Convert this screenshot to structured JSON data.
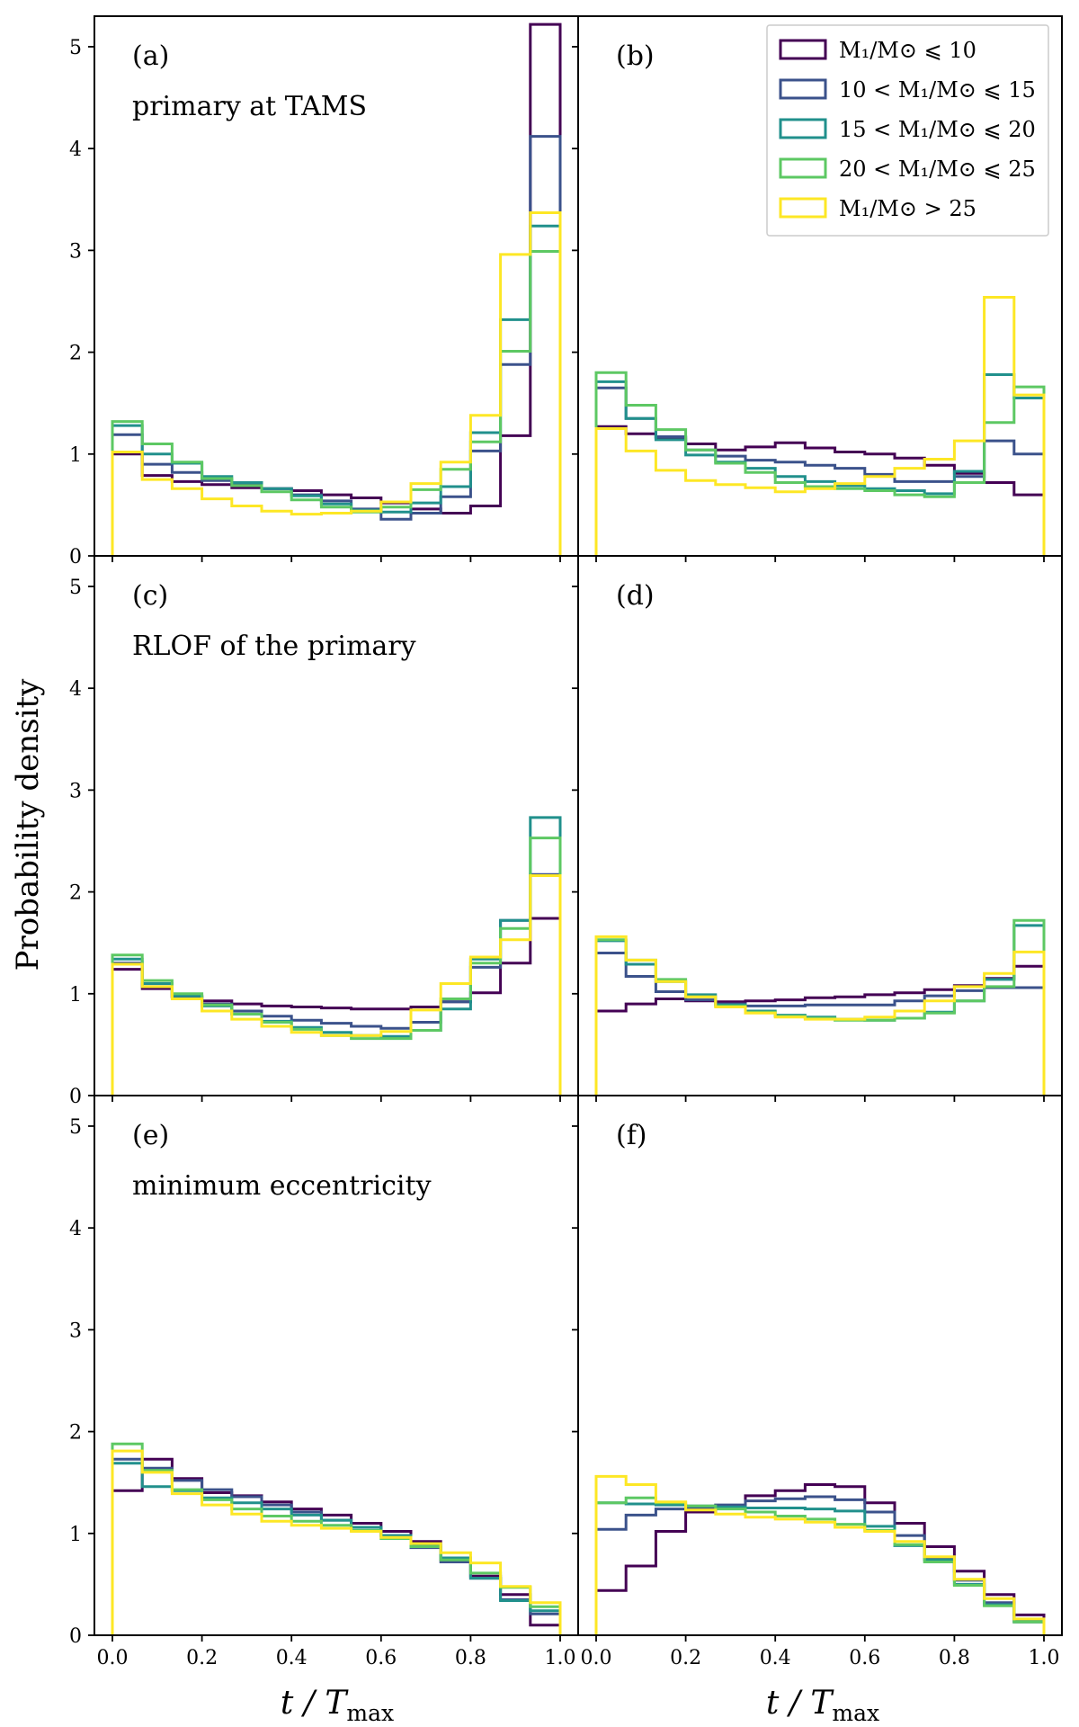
{
  "figure": {
    "ylabel": "Probability density",
    "xlabel_main": "t / T",
    "xlabel_sub": "max"
  },
  "legend": {
    "placement": "top-right",
    "entries": [
      {
        "label": "M₁/M⊙ ⩽ 10",
        "color": "#440154"
      },
      {
        "label": "10 < M₁/M⊙ ⩽ 15",
        "color": "#3b528b"
      },
      {
        "label": "15 < M₁/M⊙ ⩽ 20",
        "color": "#21908c"
      },
      {
        "label": "20 < M₁/M⊙ ⩽ 25",
        "color": "#5dc863"
      },
      {
        "label": "M₁/M⊙ > 25",
        "color": "#fde725"
      }
    ]
  },
  "chart_data": [
    {
      "type": "histogram",
      "panel": "(a)",
      "annotation": "primary at TAMS",
      "xlim": [
        0,
        1
      ],
      "ylim": [
        0,
        5.3
      ],
      "xticks": [
        "0.0",
        "0.2",
        "0.4",
        "0.6",
        "0.8",
        "1.0"
      ],
      "yticks": [
        "0",
        "1",
        "2",
        "3",
        "4",
        "5"
      ],
      "bin_width": 0.0667,
      "series": [
        {
          "name": "M1 <= 10",
          "color": "#440154",
          "values": [
            1.0,
            0.79,
            0.73,
            0.7,
            0.67,
            0.66,
            0.64,
            0.6,
            0.57,
            0.52,
            0.46,
            0.42,
            0.49,
            1.18,
            5.22
          ]
        },
        {
          "name": "10 < M1 <= 15",
          "color": "#3b528b",
          "values": [
            1.19,
            0.9,
            0.82,
            0.74,
            0.7,
            0.66,
            0.6,
            0.54,
            0.46,
            0.36,
            0.42,
            0.58,
            1.03,
            1.88,
            4.12
          ]
        },
        {
          "name": "15 < M1 <= 20",
          "color": "#21908c",
          "values": [
            1.28,
            1.0,
            0.91,
            0.78,
            0.72,
            0.66,
            0.59,
            0.51,
            0.45,
            0.43,
            0.52,
            0.68,
            1.21,
            2.32,
            3.24
          ]
        },
        {
          "name": "20 < M1 <= 25",
          "color": "#5dc863",
          "values": [
            1.32,
            1.1,
            0.92,
            0.76,
            0.69,
            0.63,
            0.55,
            0.48,
            0.43,
            0.48,
            0.65,
            0.85,
            1.12,
            2.01,
            2.99
          ]
        },
        {
          "name": "M1 > 25",
          "color": "#fde725",
          "values": [
            1.02,
            0.75,
            0.66,
            0.56,
            0.49,
            0.44,
            0.41,
            0.42,
            0.44,
            0.53,
            0.71,
            0.92,
            1.38,
            2.96,
            3.37
          ]
        }
      ]
    },
    {
      "type": "histogram",
      "panel": "(b)",
      "annotation": "",
      "xlim": [
        0,
        1
      ],
      "ylim": [
        0,
        5.3
      ],
      "xticks": [
        "0.0",
        "0.2",
        "0.4",
        "0.6",
        "0.8",
        "1.0"
      ],
      "yticks": [
        "0",
        "1",
        "2",
        "3",
        "4",
        "5"
      ],
      "bin_width": 0.0667,
      "series": [
        {
          "name": "M1 <= 10",
          "color": "#440154",
          "values": [
            1.27,
            1.2,
            1.16,
            1.1,
            1.04,
            1.07,
            1.11,
            1.06,
            1.02,
            1.0,
            0.96,
            0.89,
            0.81,
            0.72,
            0.6
          ]
        },
        {
          "name": "10 < M1 <= 15",
          "color": "#3b528b",
          "values": [
            1.65,
            1.35,
            1.17,
            1.04,
            0.98,
            0.94,
            0.92,
            0.89,
            0.86,
            0.8,
            0.73,
            0.73,
            0.78,
            1.13,
            1.0
          ]
        },
        {
          "name": "15 < M1 <= 20",
          "color": "#21908c",
          "values": [
            1.71,
            1.35,
            1.14,
            0.99,
            0.92,
            0.86,
            0.78,
            0.73,
            0.69,
            0.66,
            0.64,
            0.61,
            0.83,
            1.78,
            1.55
          ]
        },
        {
          "name": "20 < M1 <= 25",
          "color": "#5dc863",
          "values": [
            1.8,
            1.48,
            1.24,
            1.04,
            0.91,
            0.82,
            0.72,
            0.68,
            0.66,
            0.64,
            0.6,
            0.58,
            0.72,
            1.31,
            1.66
          ]
        },
        {
          "name": "M1 > 25",
          "color": "#fde725",
          "values": [
            1.25,
            1.03,
            0.84,
            0.74,
            0.7,
            0.67,
            0.63,
            0.66,
            0.71,
            0.78,
            0.86,
            0.95,
            1.13,
            2.54,
            1.58
          ]
        }
      ]
    },
    {
      "type": "histogram",
      "panel": "(c)",
      "annotation": "RLOF of the primary",
      "xlim": [
        0,
        1
      ],
      "ylim": [
        0,
        5.3
      ],
      "xticks": [
        "0.0",
        "0.2",
        "0.4",
        "0.6",
        "0.8",
        "1.0"
      ],
      "yticks": [
        "0",
        "1",
        "2",
        "3",
        "4",
        "5"
      ],
      "bin_width": 0.0667,
      "series": [
        {
          "name": "M1 <= 10",
          "color": "#440154",
          "values": [
            1.24,
            1.05,
            0.97,
            0.93,
            0.9,
            0.88,
            0.87,
            0.86,
            0.85,
            0.85,
            0.87,
            0.92,
            1.01,
            1.3,
            1.74
          ]
        },
        {
          "name": "10 < M1 <= 15",
          "color": "#3b528b",
          "values": [
            1.3,
            1.07,
            0.97,
            0.9,
            0.83,
            0.78,
            0.74,
            0.71,
            0.68,
            0.66,
            0.72,
            0.92,
            1.26,
            1.72,
            2.17
          ]
        },
        {
          "name": "15 < M1 <= 20",
          "color": "#21908c",
          "values": [
            1.34,
            1.1,
            0.98,
            0.88,
            0.8,
            0.73,
            0.67,
            0.62,
            0.59,
            0.58,
            0.64,
            0.85,
            1.34,
            1.72,
            2.73
          ]
        },
        {
          "name": "20 < M1 <= 25",
          "color": "#5dc863",
          "values": [
            1.38,
            1.13,
            1.0,
            0.89,
            0.8,
            0.72,
            0.65,
            0.59,
            0.56,
            0.56,
            0.64,
            0.95,
            1.3,
            1.64,
            2.53
          ]
        },
        {
          "name": "M1 > 25",
          "color": "#fde725",
          "values": [
            1.29,
            1.07,
            0.95,
            0.83,
            0.75,
            0.68,
            0.62,
            0.59,
            0.59,
            0.63,
            0.84,
            1.1,
            1.36,
            1.53,
            2.16
          ]
        }
      ]
    },
    {
      "type": "histogram",
      "panel": "(d)",
      "annotation": "",
      "xlim": [
        0,
        1
      ],
      "ylim": [
        0,
        5.3
      ],
      "xticks": [
        "0.0",
        "0.2",
        "0.4",
        "0.6",
        "0.8",
        "1.0"
      ],
      "yticks": [
        "0",
        "1",
        "2",
        "3",
        "4",
        "5"
      ],
      "bin_width": 0.0667,
      "series": [
        {
          "name": "M1 <= 10",
          "color": "#440154",
          "values": [
            0.83,
            0.9,
            0.95,
            0.93,
            0.92,
            0.93,
            0.94,
            0.96,
            0.97,
            0.99,
            1.01,
            1.04,
            1.08,
            1.15,
            1.27
          ]
        },
        {
          "name": "10 < M1 <= 15",
          "color": "#3b528b",
          "values": [
            1.4,
            1.17,
            1.02,
            0.94,
            0.9,
            0.88,
            0.88,
            0.89,
            0.89,
            0.89,
            0.93,
            0.98,
            1.03,
            1.06,
            1.06
          ]
        },
        {
          "name": "15 < M1 <= 20",
          "color": "#21908c",
          "values": [
            1.52,
            1.29,
            1.12,
            0.99,
            0.89,
            0.83,
            0.79,
            0.77,
            0.75,
            0.74,
            0.76,
            0.82,
            0.93,
            1.14,
            1.67
          ]
        },
        {
          "name": "20 < M1 <= 25",
          "color": "#5dc863",
          "values": [
            1.53,
            1.33,
            1.14,
            0.97,
            0.88,
            0.82,
            0.78,
            0.76,
            0.74,
            0.74,
            0.76,
            0.81,
            0.93,
            1.07,
            1.72
          ]
        },
        {
          "name": "M1 > 25",
          "color": "#fde725",
          "values": [
            1.56,
            1.33,
            1.12,
            0.97,
            0.87,
            0.81,
            0.77,
            0.75,
            0.75,
            0.77,
            0.83,
            0.93,
            1.07,
            1.2,
            1.41
          ]
        }
      ]
    },
    {
      "type": "histogram",
      "panel": "(e)",
      "annotation": "minimum eccentricity",
      "xlim": [
        0,
        1
      ],
      "ylim": [
        0,
        5.3
      ],
      "xticks": [
        "0.0",
        "0.2",
        "0.4",
        "0.6",
        "0.8",
        "1.0"
      ],
      "yticks": [
        "0",
        "1",
        "2",
        "3",
        "4",
        "5"
      ],
      "bin_width": 0.0667,
      "series": [
        {
          "name": "M1 <= 10",
          "color": "#440154",
          "values": [
            1.42,
            1.73,
            1.54,
            1.4,
            1.37,
            1.31,
            1.24,
            1.18,
            1.1,
            1.02,
            0.92,
            0.74,
            0.58,
            0.4,
            0.1
          ]
        },
        {
          "name": "10 < M1 <= 15",
          "color": "#3b528b",
          "values": [
            1.73,
            1.64,
            1.52,
            1.43,
            1.36,
            1.28,
            1.21,
            1.13,
            1.06,
            0.98,
            0.86,
            0.72,
            0.56,
            0.35,
            0.21
          ]
        },
        {
          "name": "15 < M1 <= 20",
          "color": "#21908c",
          "values": [
            1.69,
            1.46,
            1.42,
            1.35,
            1.3,
            1.24,
            1.18,
            1.13,
            1.06,
            0.98,
            0.88,
            0.76,
            0.56,
            0.34,
            0.24
          ]
        },
        {
          "name": "20 < M1 <= 25",
          "color": "#5dc863",
          "values": [
            1.88,
            1.62,
            1.43,
            1.33,
            1.24,
            1.17,
            1.12,
            1.08,
            1.03,
            0.95,
            0.87,
            0.74,
            0.61,
            0.47,
            0.28
          ]
        },
        {
          "name": "M1 > 25",
          "color": "#fde725",
          "values": [
            1.81,
            1.6,
            1.39,
            1.28,
            1.19,
            1.12,
            1.08,
            1.05,
            1.02,
            0.96,
            0.9,
            0.81,
            0.71,
            0.48,
            0.32
          ]
        }
      ]
    },
    {
      "type": "histogram",
      "panel": "(f)",
      "annotation": "",
      "xlim": [
        0,
        1
      ],
      "ylim": [
        0,
        5.3
      ],
      "xticks": [
        "0.0",
        "0.2",
        "0.4",
        "0.6",
        "0.8",
        "1.0"
      ],
      "yticks": [
        "0",
        "1",
        "2",
        "3",
        "4",
        "5"
      ],
      "bin_width": 0.0667,
      "series": [
        {
          "name": "M1 <= 10",
          "color": "#440154",
          "values": [
            0.44,
            0.68,
            1.02,
            1.21,
            1.26,
            1.37,
            1.42,
            1.48,
            1.46,
            1.3,
            1.1,
            0.87,
            0.63,
            0.4,
            0.2
          ]
        },
        {
          "name": "10 < M1 <= 15",
          "color": "#3b528b",
          "values": [
            1.04,
            1.18,
            1.24,
            1.25,
            1.28,
            1.32,
            1.34,
            1.36,
            1.33,
            1.21,
            0.98,
            0.76,
            0.54,
            0.32,
            0.13
          ]
        },
        {
          "name": "15 < M1 <= 20",
          "color": "#21908c",
          "values": [
            1.3,
            1.29,
            1.28,
            1.27,
            1.26,
            1.25,
            1.25,
            1.24,
            1.22,
            1.07,
            0.88,
            0.74,
            0.5,
            0.3,
            0.14
          ]
        },
        {
          "name": "20 < M1 <= 25",
          "color": "#5dc863",
          "values": [
            1.3,
            1.35,
            1.3,
            1.27,
            1.24,
            1.21,
            1.17,
            1.14,
            1.09,
            1.03,
            0.89,
            0.72,
            0.49,
            0.29,
            0.13
          ]
        },
        {
          "name": "M1 > 25",
          "color": "#fde725",
          "values": [
            1.56,
            1.48,
            1.31,
            1.23,
            1.19,
            1.16,
            1.14,
            1.11,
            1.06,
            1.02,
            0.92,
            0.77,
            0.55,
            0.36,
            0.16
          ]
        }
      ]
    }
  ]
}
